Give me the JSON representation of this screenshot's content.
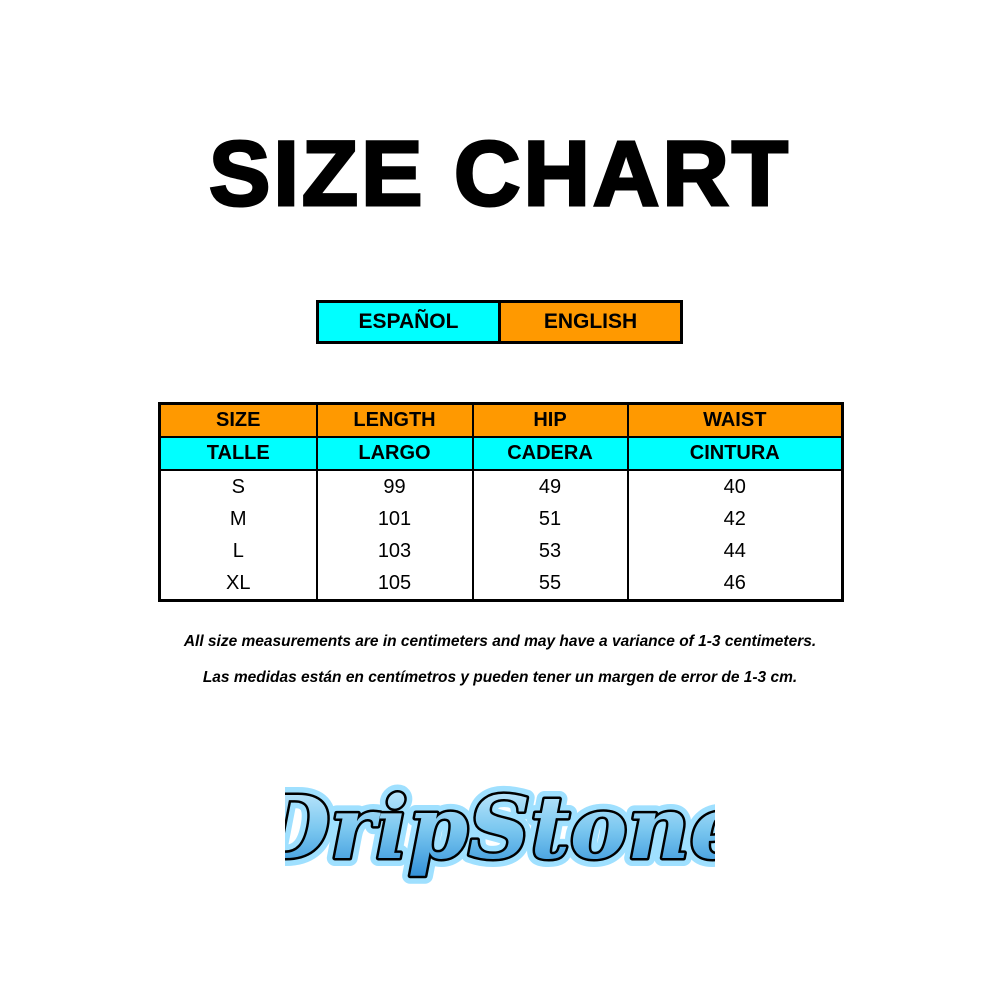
{
  "title": "SIZE CHART",
  "legend": {
    "spanish": "ESPAÑOL",
    "english": "ENGLISH",
    "spanish_color": "#00ffff",
    "english_color": "#ff9900"
  },
  "table": {
    "header_en": [
      "SIZE",
      "LENGTH",
      "HIP",
      "WAIST"
    ],
    "header_es": [
      "TALLE",
      "LARGO",
      "CADERA",
      "CINTURA"
    ],
    "rows": [
      [
        "S",
        "99",
        "49",
        "40"
      ],
      [
        "M",
        "101",
        "51",
        "42"
      ],
      [
        "L",
        "103",
        "53",
        "44"
      ],
      [
        "XL",
        "105",
        "55",
        "46"
      ]
    ]
  },
  "notes": {
    "english": "All size measurements are in centimeters and may have a variance of 1-3 centimeters.",
    "spanish": "Las medidas están en centímetros y pueden tener un margen de error de 1-3 cm."
  },
  "logo": {
    "text": "DripStone"
  }
}
